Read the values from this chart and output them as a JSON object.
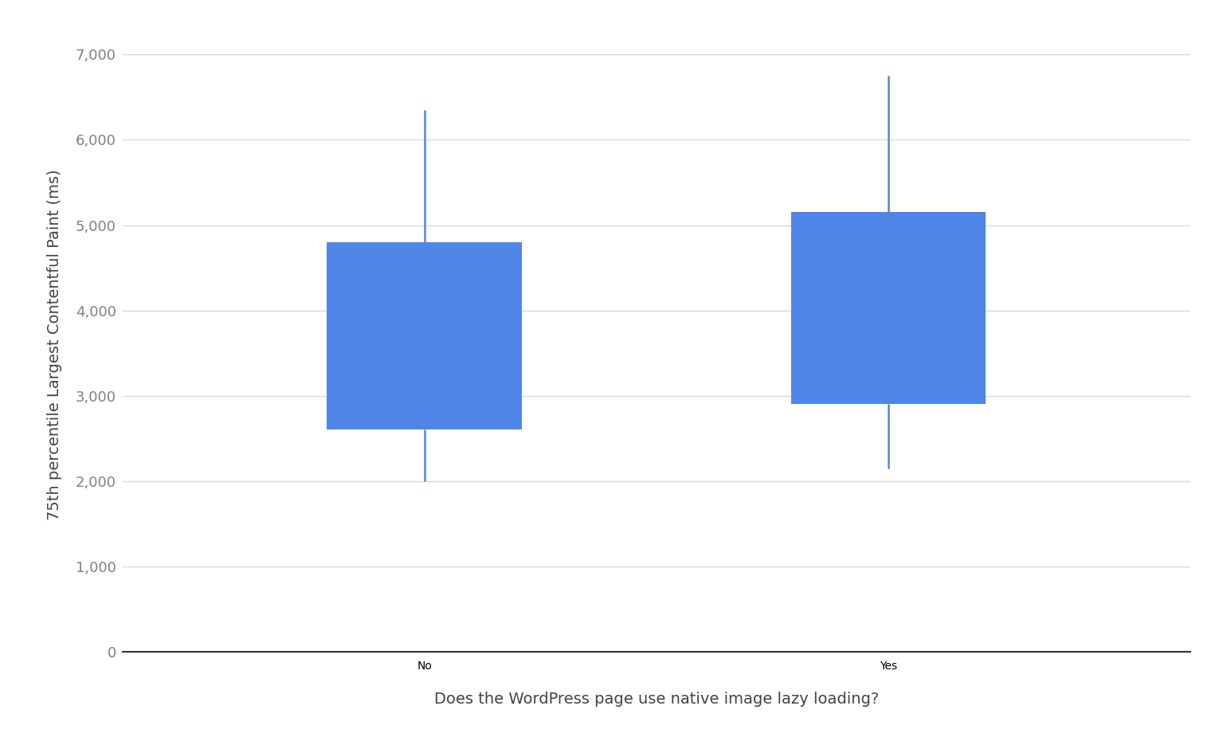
{
  "categories": [
    "No",
    "Yes"
  ],
  "boxes": [
    {
      "q1": 2600,
      "q3": 4800,
      "whisker_low": 2000,
      "whisker_high": 6350
    },
    {
      "q1": 2900,
      "q3": 5150,
      "whisker_low": 2150,
      "whisker_high": 6750
    }
  ],
  "box_color": "#4f86e8",
  "whisker_color": "#4f86e8",
  "ylabel": "75th percentile Largest Contentful Paint (ms)",
  "xlabel": "Does the WordPress page use native image lazy loading?",
  "ylim": [
    0,
    7200
  ],
  "yticks": [
    0,
    1000,
    2000,
    3000,
    4000,
    5000,
    6000,
    7000
  ],
  "ytick_labels": [
    "0",
    "1,000",
    "2,000",
    "3,000",
    "4,000",
    "5,000",
    "6,000",
    "7,000"
  ],
  "background_color": "#ffffff",
  "grid_color": "#d8d8d8",
  "box_width": 0.42,
  "whisker_linewidth": 1.8,
  "ylabel_fontsize": 14,
  "xlabel_fontsize": 14,
  "tick_fontsize": 13,
  "tick_color": "#808080",
  "label_color": "#444444",
  "x_positions": [
    1,
    2
  ],
  "xlim": [
    0.35,
    2.65
  ]
}
